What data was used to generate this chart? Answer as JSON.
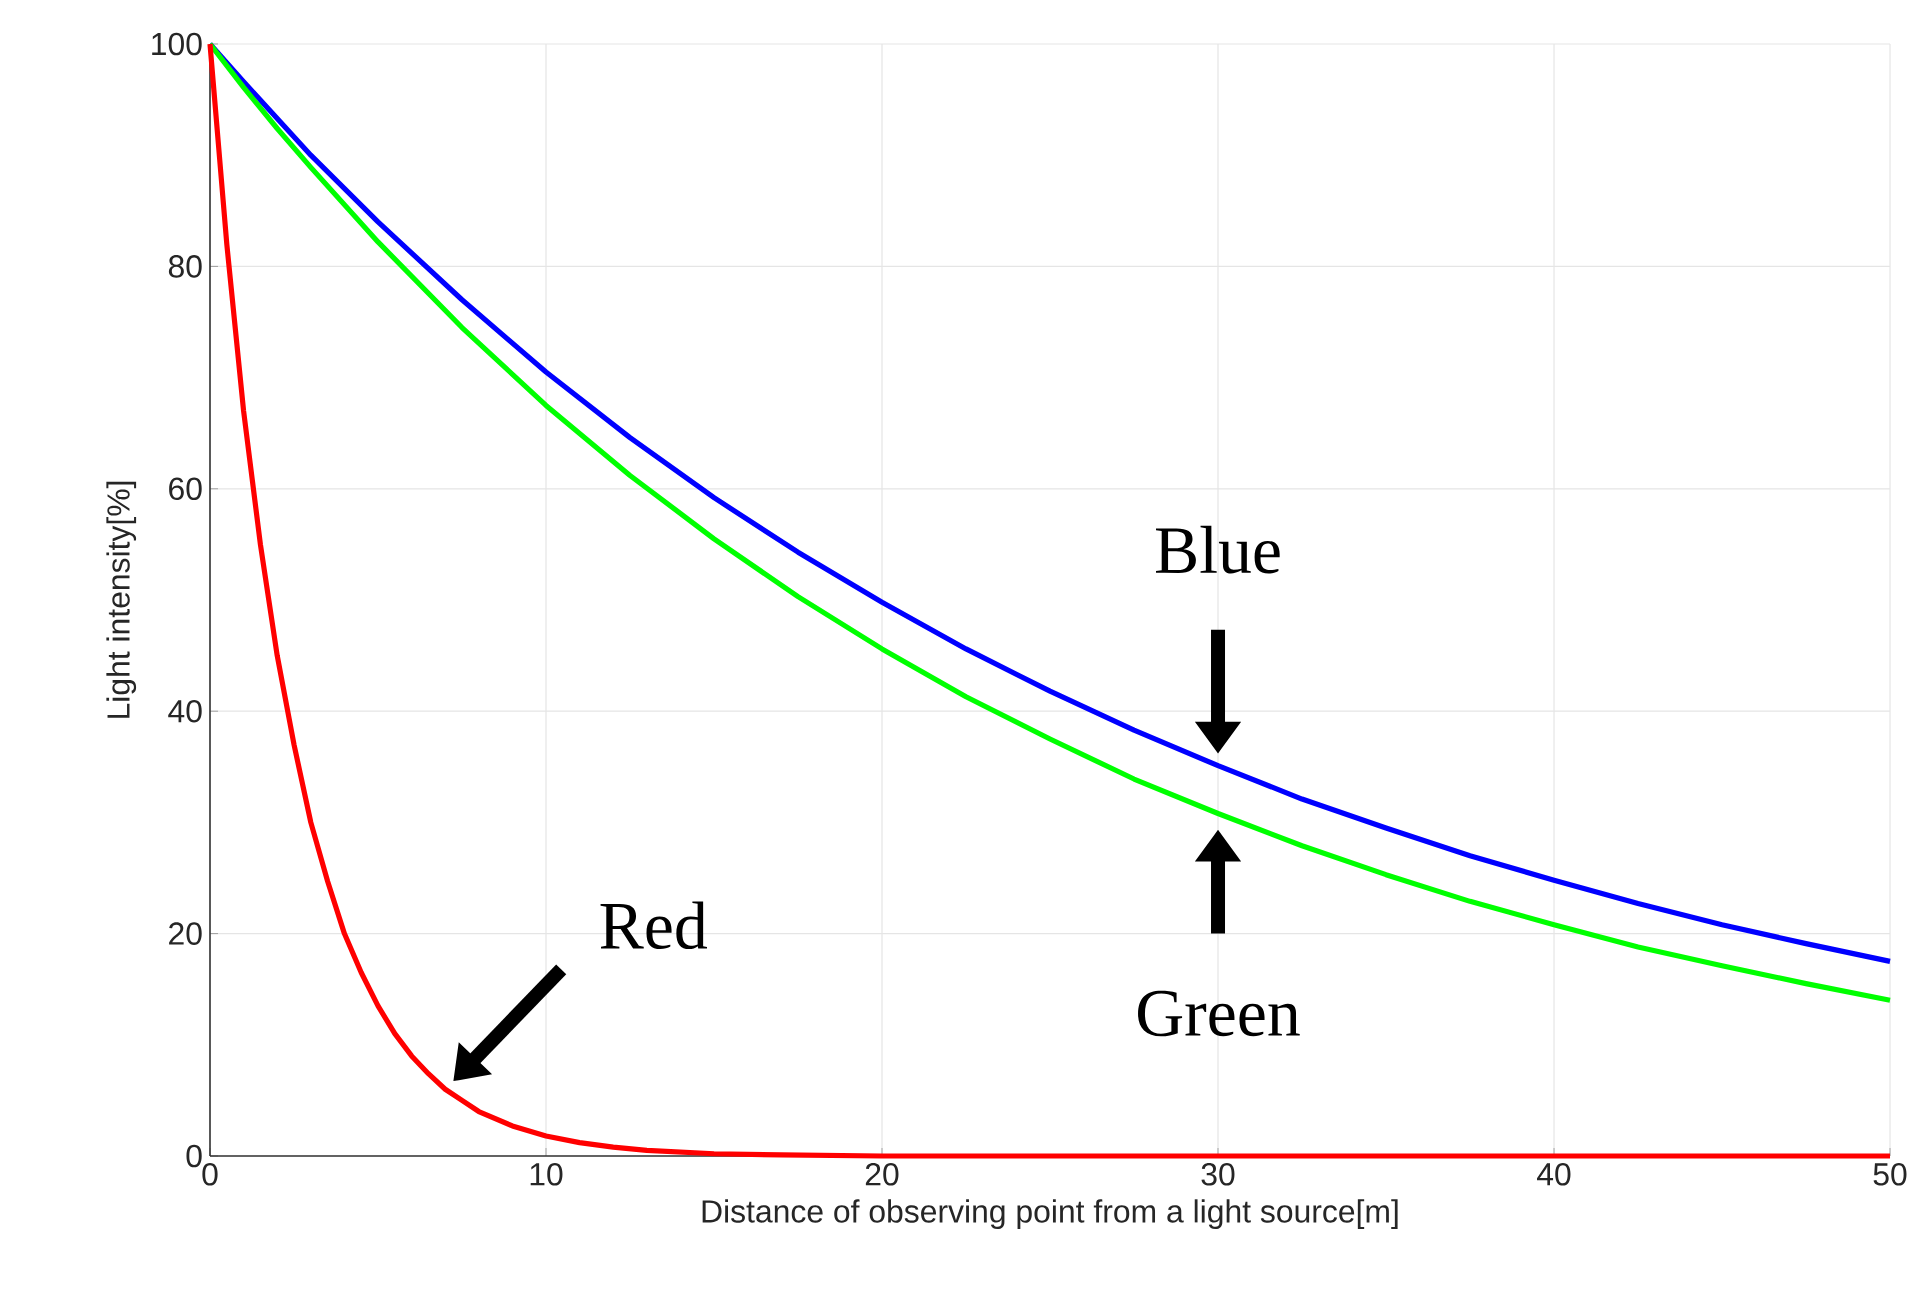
{
  "chart_data": {
    "type": "line",
    "xlabel": "Distance of observing point from a light source[m]",
    "ylabel": "Light intensity[%]",
    "xlim": [
      0,
      50
    ],
    "ylim": [
      0,
      100
    ],
    "xticks": [
      0,
      10,
      20,
      30,
      40,
      50
    ],
    "yticks": [
      0,
      20,
      40,
      60,
      80,
      100
    ],
    "grid": true,
    "line_style": "solid",
    "marker": "none",
    "series": [
      {
        "name": "Blue",
        "color": "#0000ff",
        "x": [
          0,
          1,
          2,
          3,
          5,
          7.5,
          10,
          12.5,
          15,
          17.5,
          20,
          22.5,
          25,
          27.5,
          30,
          32.5,
          35,
          37.5,
          40,
          42.5,
          45,
          47.5,
          50
        ],
        "values": [
          100,
          96.6,
          93.3,
          90,
          84,
          77,
          70.5,
          64.6,
          59.2,
          54.3,
          49.8,
          45.6,
          41.8,
          38.3,
          35.1,
          32.1,
          29.5,
          27,
          24.8,
          22.7,
          20.8,
          19.1,
          17.5
        ]
      },
      {
        "name": "Green",
        "color": "#00ff00",
        "x": [
          0,
          1,
          2,
          3,
          5,
          7.5,
          10,
          12.5,
          15,
          17.5,
          20,
          22.5,
          25,
          27.5,
          30,
          32.5,
          35,
          37.5,
          40,
          42.5,
          45,
          47.5,
          50
        ],
        "values": [
          100,
          96.1,
          92.4,
          88.9,
          82.2,
          74.5,
          67.5,
          61.2,
          55.5,
          50.3,
          45.6,
          41.3,
          37.5,
          33.9,
          30.8,
          27.9,
          25.3,
          22.9,
          20.8,
          18.8,
          17.1,
          15.5,
          14
        ]
      },
      {
        "name": "Red",
        "color": "#ff0000",
        "x": [
          0,
          0.5,
          1,
          1.5,
          2,
          2.5,
          3,
          3.5,
          4,
          4.5,
          5,
          5.5,
          6,
          6.5,
          7,
          7.5,
          8,
          9,
          10,
          11,
          12,
          13,
          15,
          17,
          20,
          25,
          30,
          40,
          50
        ],
        "values": [
          100,
          82,
          67,
          55,
          45,
          37,
          30,
          24.7,
          20,
          16.5,
          13.5,
          11,
          9,
          7.4,
          6,
          5,
          4,
          2.7,
          1.8,
          1.2,
          0.8,
          0.5,
          0.2,
          0.1,
          0,
          0,
          0,
          0,
          0
        ]
      }
    ]
  }
}
